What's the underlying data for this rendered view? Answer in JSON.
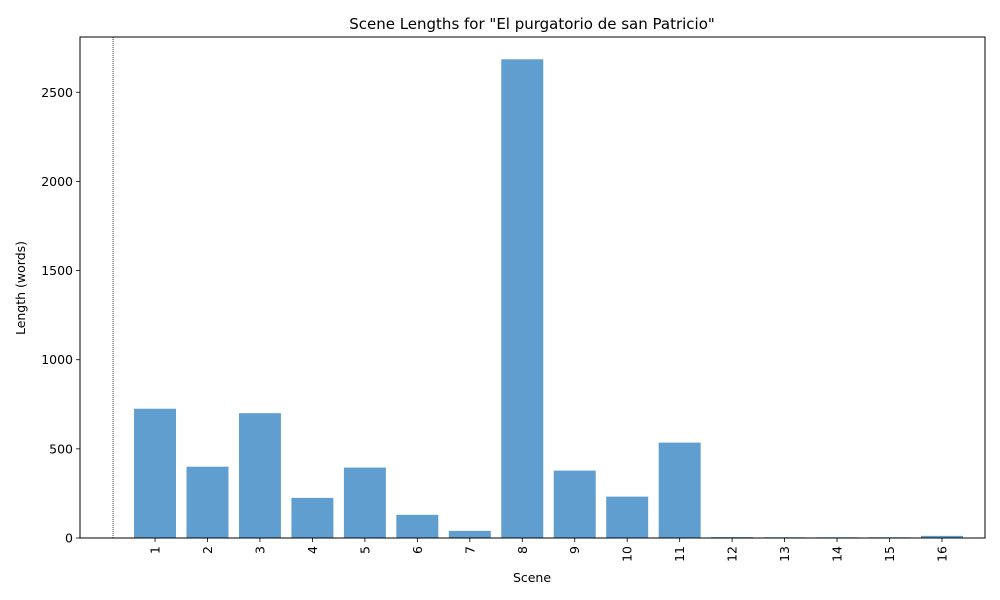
{
  "chart_data": {
    "type": "bar",
    "title": "Scene Lengths for \"El purgatorio de san Patricio\"",
    "xlabel": "Scene",
    "ylabel": "Length (words)",
    "categories": [
      "1",
      "2",
      "3",
      "4",
      "5",
      "6",
      "7",
      "8",
      "9",
      "10",
      "11",
      "12",
      "13",
      "14",
      "15",
      "16"
    ],
    "values": [
      725,
      400,
      700,
      225,
      395,
      130,
      40,
      2685,
      378,
      232,
      535,
      5,
      4,
      4,
      4,
      12
    ],
    "ylim": [
      0,
      2810
    ],
    "yticks": [
      0,
      500,
      1000,
      1500,
      2000,
      2500
    ],
    "ytick_labels": [
      "0",
      "500",
      "1000",
      "1500",
      "2000",
      "2500"
    ],
    "bar_color": "#5f9ecf",
    "grid": false,
    "reference_line": {
      "style": "dotted",
      "color": "#000000"
    },
    "x_tick_rotation": "vertical"
  }
}
